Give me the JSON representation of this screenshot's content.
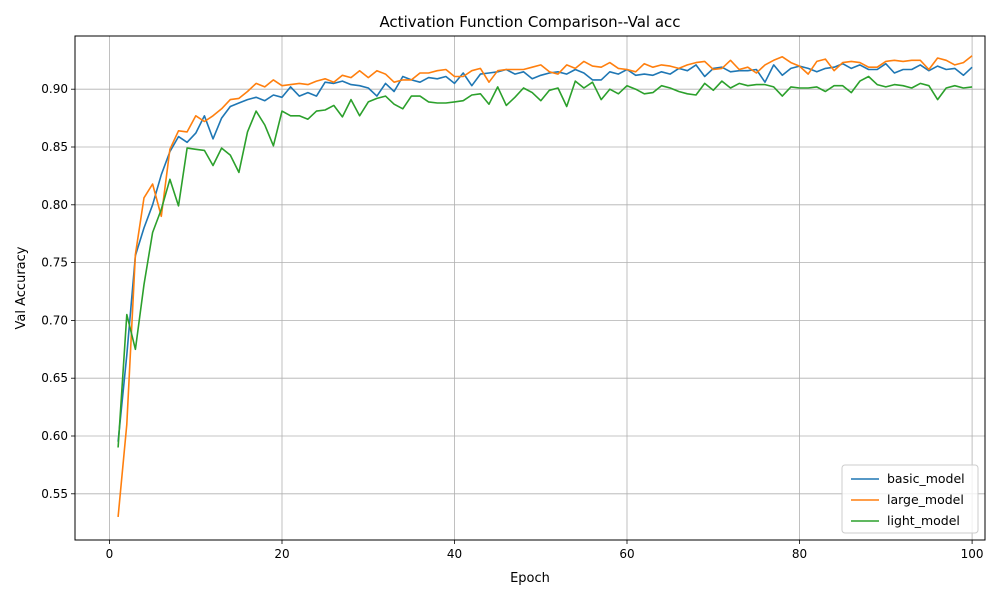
{
  "chart_data": {
    "type": "line",
    "title": "Activation Function Comparison--Val acc",
    "xlabel": "Epoch",
    "ylabel": "Val Accuracy",
    "xlim": [
      -4,
      101.5
    ],
    "ylim": [
      0.51,
      0.946
    ],
    "xticks": [
      0,
      20,
      40,
      60,
      80,
      100
    ],
    "xtick_labels": [
      "0",
      "20",
      "40",
      "60",
      "80",
      "100"
    ],
    "yticks": [
      0.55,
      0.6,
      0.65,
      0.7,
      0.75,
      0.8,
      0.85,
      0.9
    ],
    "ytick_labels": [
      "0.55",
      "0.60",
      "0.65",
      "0.70",
      "0.75",
      "0.80",
      "0.85",
      "0.90"
    ],
    "grid": true,
    "legend_position": "bottom-right",
    "x_start": 1,
    "series": [
      {
        "name": "basic_model",
        "color": "#1f77b4",
        "values": [
          0.595,
          0.67,
          0.756,
          0.78,
          0.8,
          0.826,
          0.846,
          0.859,
          0.854,
          0.862,
          0.877,
          0.857,
          0.875,
          0.885,
          0.888,
          0.891,
          0.893,
          0.89,
          0.895,
          0.893,
          0.902,
          0.894,
          0.897,
          0.894,
          0.906,
          0.905,
          0.907,
          0.904,
          0.903,
          0.901,
          0.894,
          0.905,
          0.898,
          0.911,
          0.908,
          0.906,
          0.91,
          0.909,
          0.911,
          0.905,
          0.914,
          0.903,
          0.913,
          0.914,
          0.915,
          0.917,
          0.913,
          0.915,
          0.909,
          0.912,
          0.914,
          0.915,
          0.913,
          0.917,
          0.914,
          0.908,
          0.908,
          0.915,
          0.913,
          0.917,
          0.912,
          0.913,
          0.912,
          0.915,
          0.913,
          0.918,
          0.916,
          0.921,
          0.911,
          0.918,
          0.919,
          0.915,
          0.916,
          0.916,
          0.917,
          0.906,
          0.921,
          0.912,
          0.918,
          0.92,
          0.918,
          0.915,
          0.918,
          0.919,
          0.922,
          0.918,
          0.921,
          0.917,
          0.917,
          0.922,
          0.914,
          0.917,
          0.917,
          0.921,
          0.916,
          0.92,
          0.917,
          0.918,
          0.912,
          0.919
        ]
      },
      {
        "name": "large_model",
        "color": "#ff7f0e",
        "values": [
          0.53,
          0.61,
          0.757,
          0.806,
          0.818,
          0.79,
          0.848,
          0.864,
          0.863,
          0.877,
          0.872,
          0.877,
          0.883,
          0.891,
          0.892,
          0.898,
          0.905,
          0.902,
          0.908,
          0.903,
          0.904,
          0.905,
          0.904,
          0.907,
          0.909,
          0.906,
          0.912,
          0.91,
          0.916,
          0.91,
          0.916,
          0.913,
          0.906,
          0.908,
          0.908,
          0.914,
          0.914,
          0.916,
          0.917,
          0.911,
          0.911,
          0.916,
          0.918,
          0.906,
          0.916,
          0.917,
          0.917,
          0.917,
          0.919,
          0.921,
          0.915,
          0.913,
          0.921,
          0.918,
          0.924,
          0.92,
          0.919,
          0.923,
          0.918,
          0.917,
          0.915,
          0.922,
          0.919,
          0.921,
          0.92,
          0.918,
          0.921,
          0.923,
          0.924,
          0.917,
          0.918,
          0.925,
          0.917,
          0.919,
          0.914,
          0.921,
          0.925,
          0.928,
          0.923,
          0.92,
          0.913,
          0.924,
          0.926,
          0.916,
          0.923,
          0.924,
          0.923,
          0.919,
          0.919,
          0.924,
          0.925,
          0.924,
          0.925,
          0.925,
          0.917,
          0.927,
          0.925,
          0.921,
          0.923,
          0.929
        ]
      },
      {
        "name": "light_model",
        "color": "#2ca02c",
        "values": [
          0.59,
          0.705,
          0.675,
          0.731,
          0.776,
          0.796,
          0.822,
          0.799,
          0.849,
          0.848,
          0.847,
          0.834,
          0.849,
          0.843,
          0.828,
          0.863,
          0.881,
          0.869,
          0.851,
          0.881,
          0.877,
          0.877,
          0.874,
          0.881,
          0.882,
          0.886,
          0.876,
          0.891,
          0.877,
          0.889,
          0.892,
          0.894,
          0.887,
          0.883,
          0.894,
          0.894,
          0.889,
          0.888,
          0.888,
          0.889,
          0.89,
          0.895,
          0.896,
          0.887,
          0.902,
          0.886,
          0.893,
          0.901,
          0.897,
          0.89,
          0.899,
          0.901,
          0.885,
          0.907,
          0.901,
          0.906,
          0.891,
          0.9,
          0.896,
          0.903,
          0.9,
          0.896,
          0.897,
          0.903,
          0.901,
          0.898,
          0.896,
          0.895,
          0.905,
          0.899,
          0.907,
          0.901,
          0.905,
          0.903,
          0.904,
          0.904,
          0.902,
          0.894,
          0.902,
          0.901,
          0.901,
          0.902,
          0.898,
          0.903,
          0.903,
          0.897,
          0.907,
          0.911,
          0.904,
          0.902,
          0.904,
          0.903,
          0.901,
          0.905,
          0.903,
          0.891,
          0.901,
          0.903,
          0.901,
          0.902
        ]
      }
    ]
  }
}
